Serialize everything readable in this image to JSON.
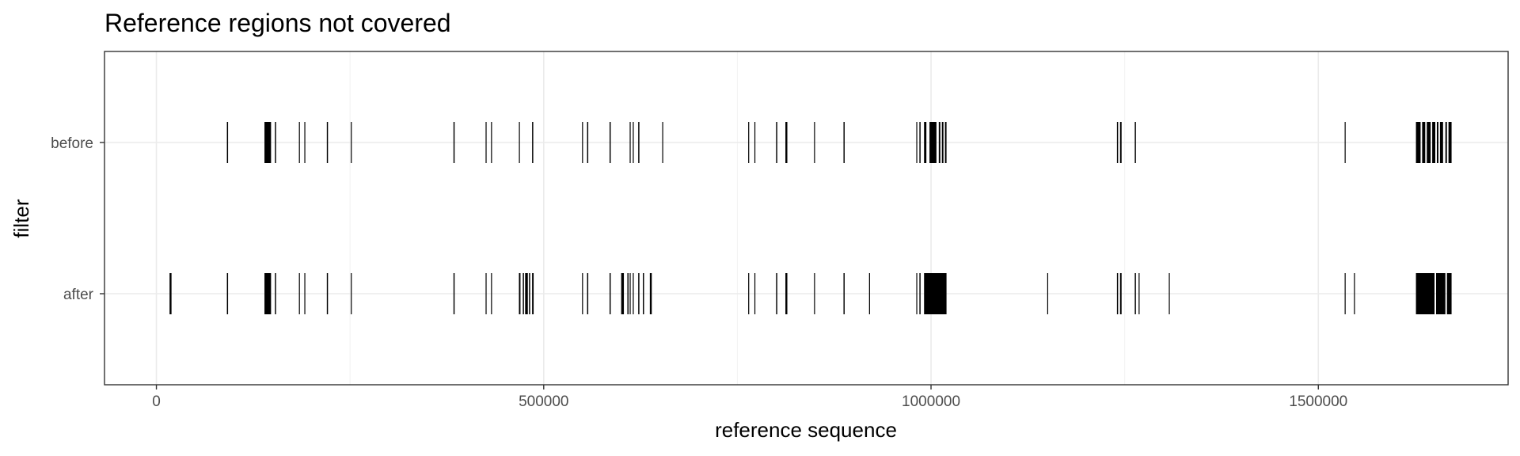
{
  "chart_data": {
    "type": "bar",
    "title": "Reference regions not covered",
    "xlabel": "reference sequence",
    "ylabel": "filter",
    "xlim": [
      -67000,
      1745000
    ],
    "x_ticks": [
      0,
      500000,
      1000000,
      1500000
    ],
    "x_tick_labels": [
      "0",
      "500000",
      "1000000",
      "1500000"
    ],
    "categories": [
      "before",
      "after"
    ],
    "grid": true,
    "series": [
      {
        "name": "before",
        "regions": [
          [
            91000,
            92500
          ],
          [
            139500,
            148000
          ],
          [
            153000,
            154500
          ],
          [
            184000,
            184800
          ],
          [
            191000,
            191800
          ],
          [
            220000,
            221500
          ],
          [
            251000,
            252000
          ],
          [
            383500,
            385000
          ],
          [
            425000,
            426000
          ],
          [
            432000,
            433000
          ],
          [
            468000,
            469000
          ],
          [
            485000,
            486500
          ],
          [
            549500,
            550500
          ],
          [
            556000,
            557500
          ],
          [
            585000,
            586500
          ],
          [
            611000,
            612000
          ],
          [
            615000,
            616000
          ],
          [
            622000,
            623500
          ],
          [
            653000,
            654000
          ],
          [
            764000,
            765000
          ],
          [
            772000,
            773000
          ],
          [
            800000,
            801500
          ],
          [
            812000,
            814500
          ],
          [
            849000,
            849800
          ],
          [
            887000,
            888500
          ],
          [
            981000,
            982000
          ],
          [
            985000,
            986500
          ],
          [
            991000,
            994000
          ],
          [
            998000,
            1007000
          ],
          [
            1010000,
            1012000
          ],
          [
            1014000,
            1016000
          ],
          [
            1018000,
            1020000
          ],
          [
            1240000,
            1241500
          ],
          [
            1244000,
            1246000
          ],
          [
            1263000,
            1264500
          ],
          [
            1534000,
            1535000
          ],
          [
            1626000,
            1632000
          ],
          [
            1634000,
            1638000
          ],
          [
            1640000,
            1645000
          ],
          [
            1647000,
            1651000
          ],
          [
            1653000,
            1655000
          ],
          [
            1657000,
            1661000
          ],
          [
            1664000,
            1666000
          ],
          [
            1668000,
            1672000
          ]
        ]
      },
      {
        "name": "after",
        "regions": [
          [
            17000,
            19500
          ],
          [
            91000,
            92500
          ],
          [
            139500,
            148000
          ],
          [
            153000,
            154500
          ],
          [
            184000,
            184800
          ],
          [
            191000,
            191800
          ],
          [
            220000,
            221500
          ],
          [
            251000,
            252000
          ],
          [
            383500,
            385000
          ],
          [
            425000,
            426000
          ],
          [
            432000,
            433000
          ],
          [
            468000,
            470000
          ],
          [
            473000,
            474500
          ],
          [
            476000,
            479500
          ],
          [
            481000,
            482500
          ],
          [
            485000,
            487000
          ],
          [
            549500,
            550500
          ],
          [
            556000,
            557500
          ],
          [
            585000,
            586500
          ],
          [
            600000,
            603500
          ],
          [
            608000,
            609500
          ],
          [
            611000,
            612000
          ],
          [
            615000,
            616000
          ],
          [
            622000,
            623500
          ],
          [
            628000,
            629500
          ],
          [
            637000,
            639500
          ],
          [
            764000,
            765000
          ],
          [
            772000,
            773000
          ],
          [
            800000,
            801500
          ],
          [
            812000,
            814500
          ],
          [
            849000,
            849800
          ],
          [
            887000,
            888500
          ],
          [
            920000,
            921000
          ],
          [
            981000,
            982000
          ],
          [
            985000,
            986500
          ],
          [
            991000,
            1020000
          ],
          [
            1150000,
            1151000
          ],
          [
            1240000,
            1241500
          ],
          [
            1244000,
            1246000
          ],
          [
            1263000,
            1264500
          ],
          [
            1268000,
            1269000
          ],
          [
            1307000,
            1308000
          ],
          [
            1534000,
            1535000
          ],
          [
            1546000,
            1547000
          ],
          [
            1626000,
            1650000
          ],
          [
            1652000,
            1664000
          ],
          [
            1666000,
            1672000
          ]
        ]
      }
    ]
  }
}
